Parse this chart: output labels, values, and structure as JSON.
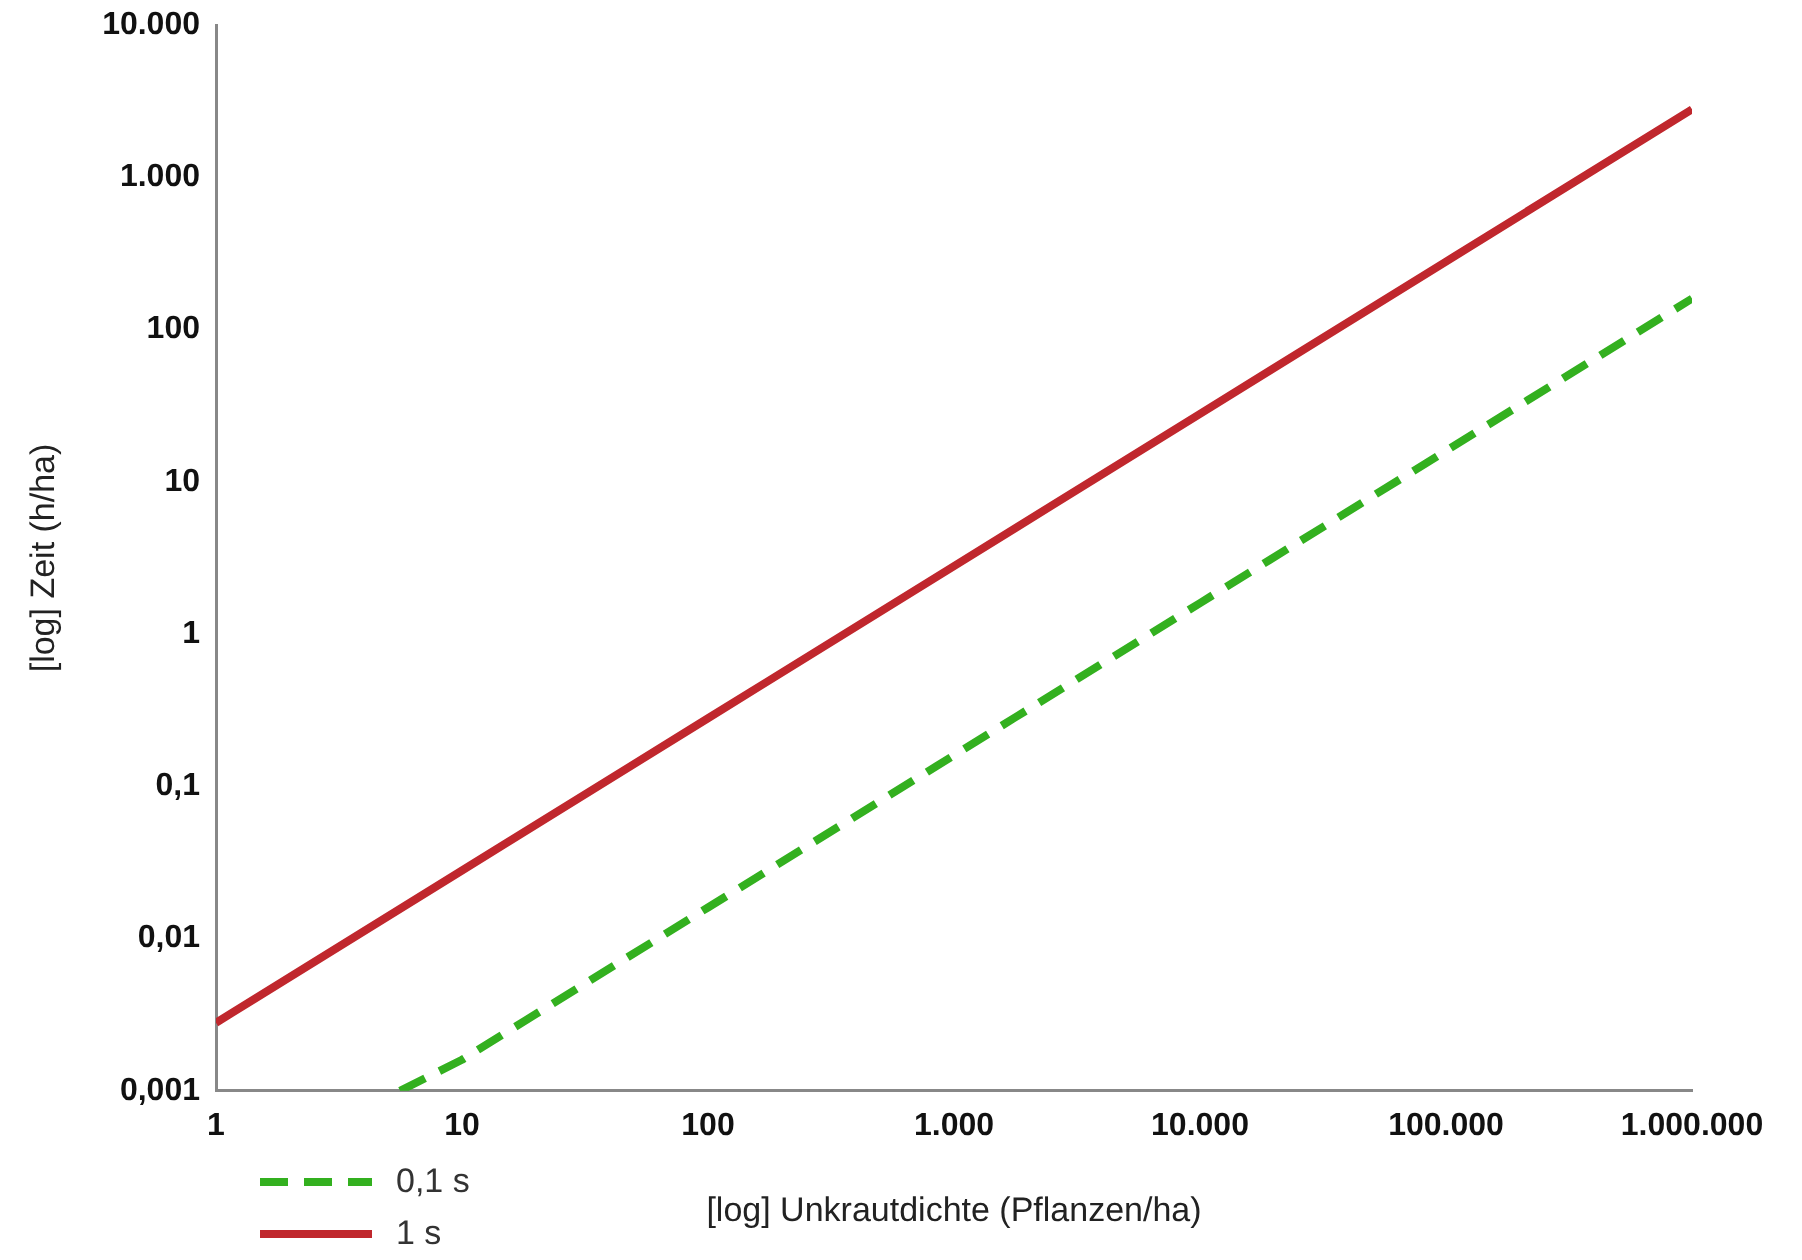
{
  "chart_data": {
    "type": "line",
    "xlabel": "[log] Unkrautdichte (Pflanzen/ha)",
    "ylabel": "[log] Zeit (h/ha)",
    "log": "xy",
    "grid": false,
    "legend": "bottom left",
    "marker": "none",
    "xlim": [
      1,
      1000000
    ],
    "ylim": [
      0.001,
      10000
    ],
    "xticks": [
      1,
      10,
      100,
      {
        "value": 1000,
        "label": "1.000"
      },
      {
        "value": 10000,
        "label": "10.000"
      },
      {
        "value": 100000,
        "label": "100.000"
      },
      {
        "value": 1000000,
        "label": "1.000.000"
      }
    ],
    "yticks": [
      {
        "value": 0.001,
        "label": "0,001"
      },
      {
        "value": 0.01,
        "label": "0,01"
      },
      {
        "value": 0.1,
        "label": "0,1"
      },
      1,
      10,
      100,
      {
        "value": 1000,
        "label": "1.000"
      },
      {
        "value": 10000,
        "label": "10.000"
      }
    ],
    "series": [
      {
        "name": "0,1 s",
        "color": "#33b01f",
        "line_style": "dashed",
        "x": [
          5.6,
          10,
          100,
          1000,
          10000,
          100000,
          1000000
        ],
        "values": [
          0.001,
          0.0016,
          0.016,
          0.16,
          1.6,
          16,
          160
        ]
      },
      {
        "name": "1 s",
        "color": "#c0272d",
        "line_style": "solid",
        "x": [
          1,
          10,
          100,
          1000,
          10000,
          100000,
          1000000
        ],
        "values": [
          0.0028,
          0.028,
          0.28,
          2.8,
          28,
          280,
          2800
        ]
      }
    ]
  }
}
